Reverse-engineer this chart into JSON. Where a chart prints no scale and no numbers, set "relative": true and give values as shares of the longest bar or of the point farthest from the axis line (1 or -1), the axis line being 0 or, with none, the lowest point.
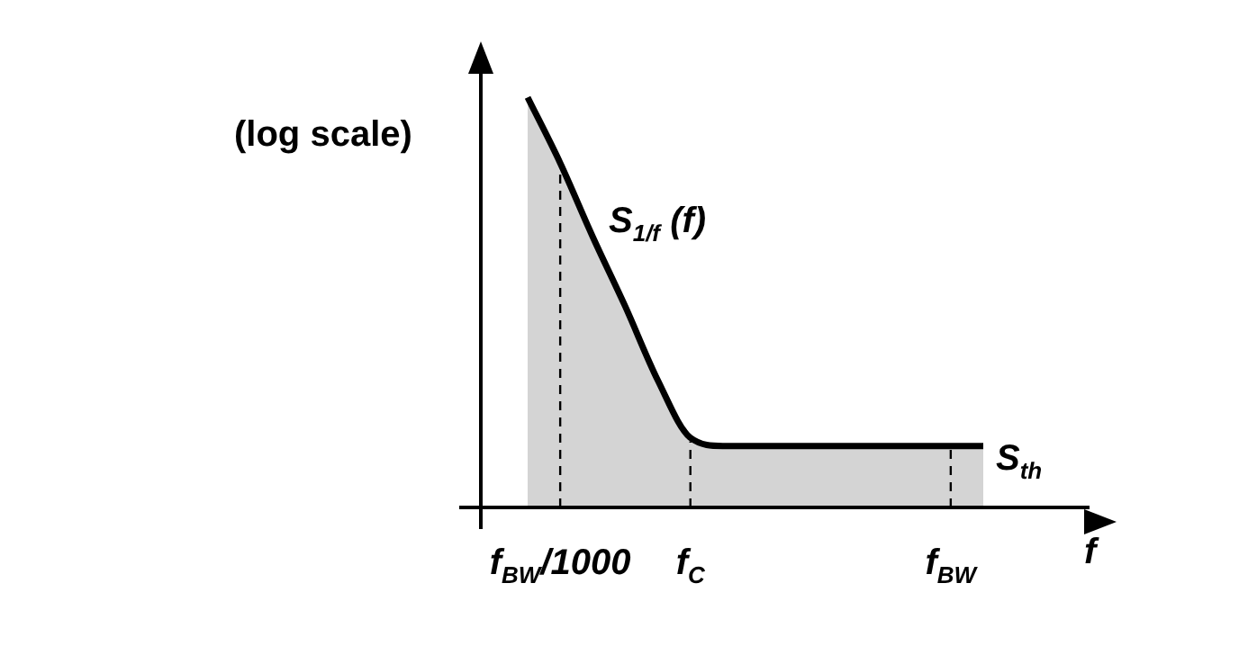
{
  "chart_data": {
    "type": "area",
    "relative": true,
    "ylabel": "(log scale)",
    "xlabel": "f",
    "categories": [
      null,
      "f$_{BW}$/1000",
      null,
      null,
      null,
      "f$_{C}$",
      null,
      null,
      null,
      null,
      null,
      null,
      null,
      "f$_{BW}$",
      null
    ],
    "series": [
      {
        "color": "#000000",
        "values": [
          1,
          0.84,
          0.66,
          0.49,
          0.31,
          0.17,
          0.15,
          0.15,
          0.15,
          0.15,
          0.15,
          0.15,
          0.15,
          0.15,
          0.15
        ]
      }
    ],
    "annotations": [
      "S$_{1/f}$ (f)",
      "S$_{th}$"
    ],
    "ref_lines": [
      {
        "axis": "x",
        "value": "f$_{BW}$/1000",
        "line_style": "dashed"
      },
      {
        "axis": "x",
        "value": "f$_{C}$",
        "line_style": "dashed"
      },
      {
        "axis": "x",
        "value": "f$_{BW}$",
        "line_style": "dashed"
      }
    ],
    "grid": false,
    "legend": false,
    "marker": "none",
    "line_style": "solid",
    "tick_labels": "x"
  }
}
